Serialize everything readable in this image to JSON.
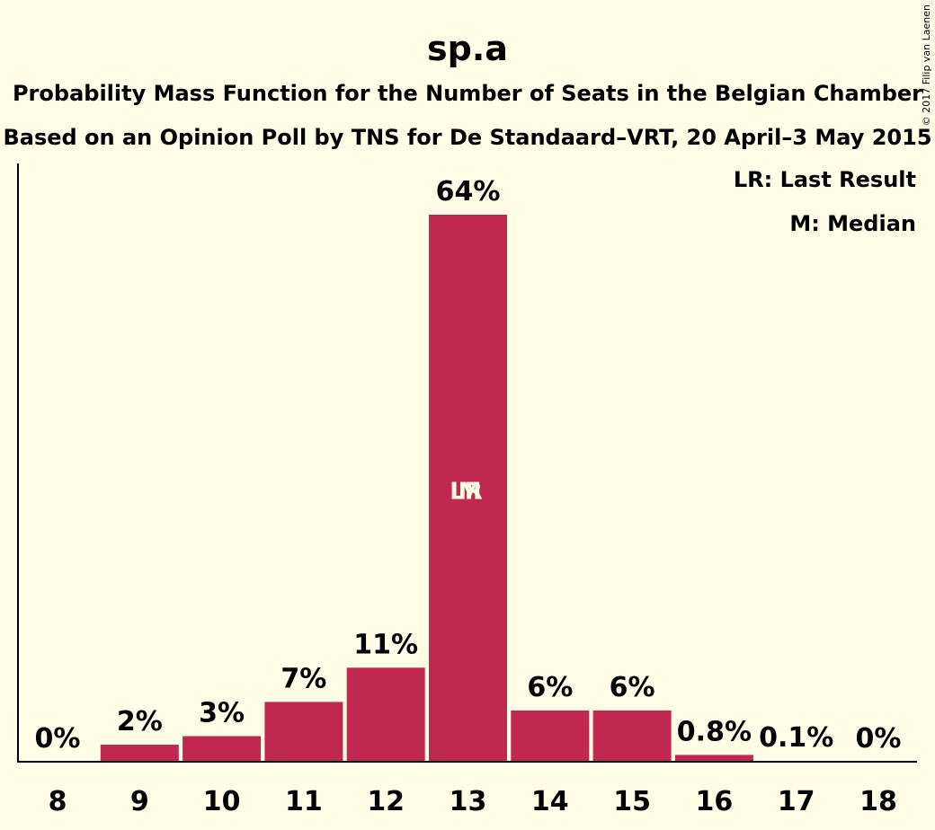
{
  "chart_data": {
    "type": "bar",
    "title": "sp.a",
    "subtitle": "Probability Mass Function for the Number of Seats in the Belgian Chamber",
    "subtitle2": "Based on an Opinion Poll by TNS for De Standaard–VRT, 20 April–3 May 2015",
    "categories": [
      "8",
      "9",
      "10",
      "11",
      "12",
      "13",
      "14",
      "15",
      "16",
      "17",
      "18"
    ],
    "values": [
      0,
      2,
      3,
      7,
      11,
      64,
      6,
      6,
      0.8,
      0.1,
      0
    ],
    "value_labels": [
      "0%",
      "2%",
      "3%",
      "7%",
      "11%",
      "64%",
      "6%",
      "6%",
      "0.8%",
      "0.1%",
      "0%"
    ],
    "ylim": [
      0,
      64
    ],
    "bar_color": "#C0284F",
    "background_color": "#FFFDE6",
    "legend": [
      "LR: Last Result",
      "M: Median"
    ],
    "legend_position": "top-right",
    "markers": [
      {
        "category": "13",
        "label": "LR"
      },
      {
        "category": "13",
        "label": "M"
      }
    ],
    "copyright": "© 2017 Filip van Laenen"
  }
}
